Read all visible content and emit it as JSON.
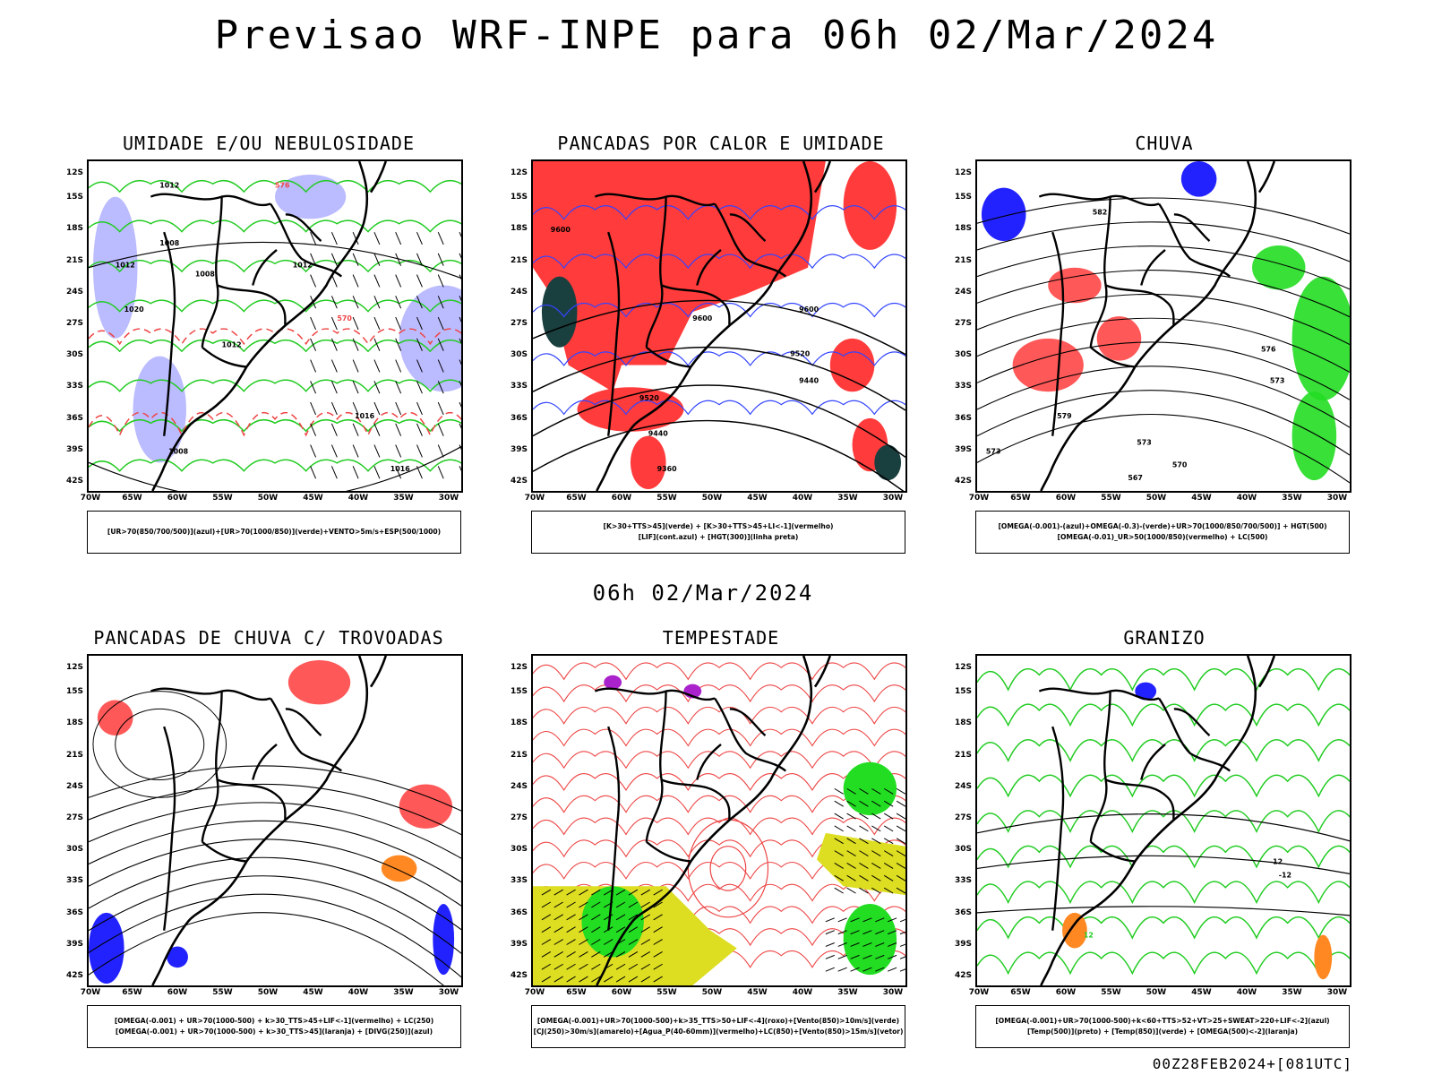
{
  "title": "Previsao WRF-INPE  para 06h 02/Mar/2024",
  "mid_label": "06h 02/Mar/2024",
  "footer": "00Z28FEB2024+[081UTC]",
  "lat_labels": [
    "12S",
    "15S",
    "18S",
    "21S",
    "24S",
    "27S",
    "30S",
    "33S",
    "36S",
    "39S",
    "42S"
  ],
  "lon_labels": [
    "70W",
    "65W",
    "60W",
    "55W",
    "50W",
    "45W",
    "40W",
    "35W",
    "30W"
  ],
  "colors": {
    "red_area": "#ff3b3b",
    "blue_area": "#2222ff",
    "green_area": "#22dd22",
    "lavender_area": "#aaaaff",
    "yellow_area": "#dddd22",
    "orange_area": "#ff8822",
    "purple_area": "#aa22cc",
    "dark_teal_area": "#1a3f3f",
    "contour_red": "#ee4444",
    "contour_green": "#22cc22",
    "contour_blue": "#3344ff"
  },
  "panels": [
    {
      "title": "UMIDADE E/OU NEBULOSIDADE",
      "legend": [
        "[UR>70(850/700/500)](azul)+[UR>70(1000/850)](verde)+VENTO>5m/s+ESP(500/1000)"
      ],
      "contour_labels": [
        "1008",
        "1008",
        "1012",
        "1012",
        "1012",
        "1016",
        "1016",
        "1008",
        "1012",
        "1020",
        "576",
        "570"
      ]
    },
    {
      "title": "PANCADAS POR CALOR E UMIDADE",
      "legend": [
        "[K>30+TTS>45](verde) + [K>30+TTS>45+LI<-1](vermelho)",
        "[LIF](cont.azul) + [HGT(300)](linha preta)"
      ],
      "contour_labels": [
        "9600",
        "9600",
        "9520",
        "9440",
        "9360",
        "9600",
        "9520",
        "9440"
      ]
    },
    {
      "title": "CHUVA",
      "legend": [
        "[OMEGA(-0.001)-(azul)+OMEGA(-0.3)-(verde)+UR>70(1000/850/700/500)] + HGT(500)",
        "[OMEGA(-0.01)_UR>50(1000/850)(vermelho) + LC(500)"
      ],
      "contour_labels": [
        "582",
        "576",
        "573",
        "573",
        "570",
        "567",
        "579",
        "573"
      ]
    },
    {
      "title": "PANCADAS DE CHUVA C/ TROVOADAS",
      "legend": [
        "[OMEGA(-0.001) + UR>70(1000-500) + k>30_TTS>45+LIF<-1](vermelho) + LC(250)",
        "[OMEGA(-0.001) + UR>70(1000-500) + k>30_TTS>45](laranja) + [DIVG(250)](azul)"
      ],
      "contour_labels": []
    },
    {
      "title": "TEMPESTADE",
      "legend": [
        "[OMEGA(-0.001)+UR>70(1000-500)+k>35_TTS>50+LIF<-4](roxo)+[Vento(850)>10m/s](verde)",
        "[CJ(250)>30m/s](amarelo)+[Agua_P(40-60mm)](vermelho)+LC(850)+[Vento(850)>15m/s](vetor)"
      ],
      "contour_labels": []
    },
    {
      "title": "GRANIZO",
      "legend": [
        "[OMEGA(-0.001)+UR>70(1000-500)+k<60+TTS>52+VT>25+SWEAT>220+LIF<-2](azul)",
        "[Temp(500)](preto) + [Temp(850)](verde) + [OMEGA(500)<-2](laranja)"
      ],
      "contour_labels": [
        "-12",
        "-12",
        "12"
      ]
    }
  ]
}
